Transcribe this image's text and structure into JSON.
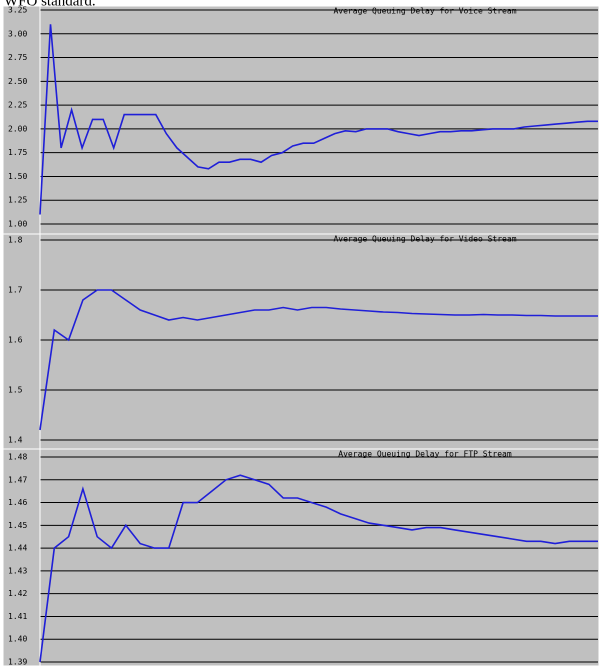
{
  "caption": "WFQ standard.",
  "chart_data": [
    {
      "type": "line",
      "title": "Average Queuing Delay for Voice Stream",
      "ylim": [
        1.0,
        3.25
      ],
      "yticks": [
        {
          "value": 1.0,
          "label": "1.00"
        },
        1.25,
        {
          "value": 1.5,
          "label": "1.50"
        },
        1.75,
        {
          "value": 2.0,
          "label": "2.00"
        },
        2.25,
        {
          "value": 2.5,
          "label": "2.50"
        },
        2.75,
        {
          "value": 3.0,
          "label": "3.00"
        },
        3.25
      ],
      "grid": true,
      "series": [
        {
          "name": "Voice",
          "color": "#1f1fd8",
          "values": [
            1.1,
            3.1,
            1.8,
            2.2,
            1.8,
            2.1,
            2.1,
            1.8,
            2.15,
            2.15,
            2.15,
            2.15,
            1.95,
            1.8,
            1.7,
            1.6,
            1.58,
            1.65,
            1.65,
            1.68,
            1.68,
            1.65,
            1.72,
            1.75,
            1.82,
            1.85,
            1.85,
            1.9,
            1.95,
            1.98,
            1.97,
            2.0,
            2.0,
            2.0,
            1.97,
            1.95,
            1.93,
            1.95,
            1.97,
            1.97,
            1.98,
            1.98,
            1.99,
            2.0,
            2.0,
            2.0,
            2.02,
            2.03,
            2.04,
            2.05,
            2.06,
            2.07,
            2.08,
            2.08
          ]
        }
      ]
    },
    {
      "type": "line",
      "title": "Average Queuing Delay for Video Stream",
      "ylim": [
        1.4,
        1.8
      ],
      "yticks": [
        1.4,
        1.5,
        1.6,
        1.7,
        1.8
      ],
      "grid": true,
      "series": [
        {
          "name": "Video",
          "color": "#1f1fd8",
          "values": [
            1.42,
            1.62,
            1.6,
            1.68,
            1.7,
            1.7,
            1.68,
            1.66,
            1.65,
            1.64,
            1.645,
            1.64,
            1.645,
            1.65,
            1.655,
            1.66,
            1.66,
            1.665,
            1.66,
            1.665,
            1.665,
            1.662,
            1.66,
            1.658,
            1.656,
            1.655,
            1.653,
            1.652,
            1.651,
            1.65,
            1.65,
            1.651,
            1.65,
            1.65,
            1.649,
            1.649,
            1.648,
            1.648,
            1.648,
            1.648
          ]
        }
      ]
    },
    {
      "type": "line",
      "title": "Average Queuing Delay for FTP Stream",
      "ylim": [
        1.39,
        1.48
      ],
      "yticks": [
        1.39,
        {
          "value": 1.4,
          "label": "1.40"
        },
        1.41,
        1.42,
        1.43,
        1.44,
        1.45,
        1.46,
        1.47,
        1.48
      ],
      "grid": true,
      "series": [
        {
          "name": "FTP",
          "color": "#1f1fd8",
          "values": [
            1.39,
            1.44,
            1.445,
            1.466,
            1.445,
            1.44,
            1.45,
            1.442,
            1.44,
            1.44,
            1.46,
            1.46,
            1.465,
            1.47,
            1.472,
            1.47,
            1.468,
            1.462,
            1.462,
            1.46,
            1.458,
            1.455,
            1.453,
            1.451,
            1.45,
            1.449,
            1.448,
            1.449,
            1.449,
            1.448,
            1.447,
            1.446,
            1.445,
            1.444,
            1.443,
            1.443,
            1.442,
            1.443,
            1.443,
            1.443
          ]
        }
      ]
    }
  ]
}
